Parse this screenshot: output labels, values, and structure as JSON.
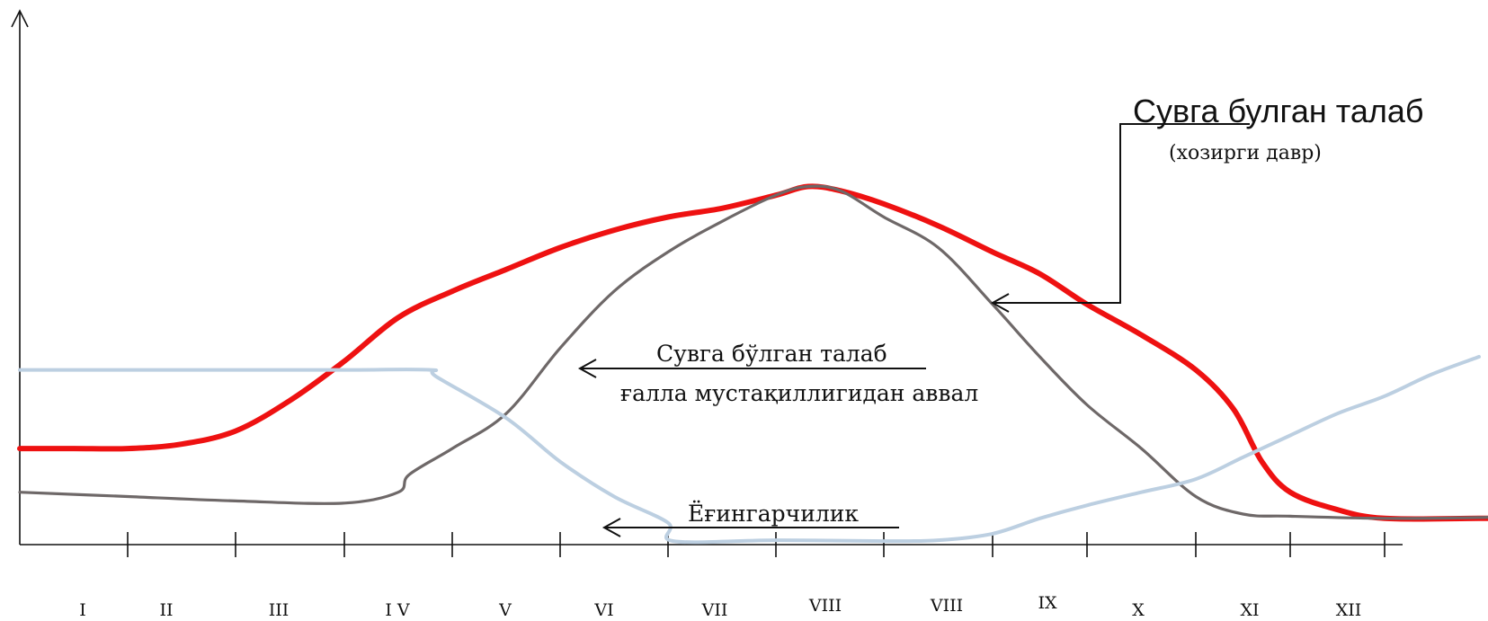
{
  "chart_data": {
    "type": "line",
    "title": "",
    "xlabel": "",
    "ylabel": "",
    "categories": [
      "I",
      "II",
      "III",
      "I V",
      "V",
      "VI",
      "VII",
      "VIII",
      "VIII",
      "IX",
      "X",
      "XI",
      "XII"
    ],
    "grid": false,
    "legend": "none",
    "series": [
      {
        "color": "#ee1111",
        "points": [
          [
            0,
            0.22
          ],
          [
            0.5,
            0.22
          ],
          [
            1,
            0.22
          ],
          [
            1.5,
            0.23
          ],
          [
            2,
            0.26
          ],
          [
            2.5,
            0.33
          ],
          [
            3,
            0.42
          ],
          [
            3.5,
            0.52
          ],
          [
            4,
            0.58
          ],
          [
            4.5,
            0.63
          ],
          [
            5,
            0.68
          ],
          [
            5.5,
            0.72
          ],
          [
            6,
            0.75
          ],
          [
            6.5,
            0.77
          ],
          [
            7,
            0.8
          ],
          [
            7.3,
            0.82
          ],
          [
            7.6,
            0.81
          ],
          [
            8,
            0.78
          ],
          [
            8.5,
            0.73
          ],
          [
            9,
            0.67
          ],
          [
            9.5,
            0.62
          ],
          [
            10,
            0.55
          ],
          [
            10.5,
            0.48
          ],
          [
            11,
            0.4
          ],
          [
            11.4,
            0.31
          ],
          [
            11.7,
            0.19
          ],
          [
            12,
            0.12
          ],
          [
            12.5,
            0.08
          ],
          [
            13,
            0.06
          ],
          [
            14,
            0.06
          ],
          [
            14.6,
            0.06
          ]
        ]
      },
      {
        "color": "#6e6868",
        "points": [
          [
            0,
            0.12
          ],
          [
            1,
            0.11
          ],
          [
            2,
            0.1
          ],
          [
            3,
            0.095
          ],
          [
            3.5,
            0.12
          ],
          [
            3.6,
            0.16
          ],
          [
            4,
            0.22
          ],
          [
            4.5,
            0.3
          ],
          [
            5,
            0.45
          ],
          [
            5.5,
            0.58
          ],
          [
            6,
            0.67
          ],
          [
            6.5,
            0.74
          ],
          [
            7,
            0.8
          ],
          [
            7.3,
            0.82
          ],
          [
            7.6,
            0.81
          ],
          [
            8,
            0.75
          ],
          [
            8.5,
            0.68
          ],
          [
            9,
            0.55
          ],
          [
            9.5,
            0.43
          ],
          [
            10,
            0.32
          ],
          [
            10.5,
            0.22
          ],
          [
            11,
            0.11
          ],
          [
            11.5,
            0.07
          ],
          [
            12,
            0.065
          ],
          [
            13,
            0.06
          ],
          [
            14,
            0.062
          ],
          [
            14.6,
            0.067
          ]
        ]
      },
      {
        "color": "#bccfe1",
        "points": [
          [
            0,
            0.4
          ],
          [
            1,
            0.4
          ],
          [
            2,
            0.4
          ],
          [
            3,
            0.4
          ],
          [
            3.8,
            0.4
          ],
          [
            3.85,
            0.385
          ],
          [
            4.5,
            0.29
          ],
          [
            5,
            0.19
          ],
          [
            5.5,
            0.11
          ],
          [
            6,
            0.05
          ],
          [
            6.05,
            0.008
          ],
          [
            7,
            0.01
          ],
          [
            8,
            0.008
          ],
          [
            8.5,
            0.01
          ],
          [
            9,
            0.025
          ],
          [
            9.5,
            0.06
          ],
          [
            10,
            0.09
          ],
          [
            10.5,
            0.12
          ],
          [
            11,
            0.15
          ],
          [
            11.5,
            0.2
          ],
          [
            12,
            0.25
          ],
          [
            12.5,
            0.3
          ],
          [
            13,
            0.34
          ],
          [
            13.5,
            0.39
          ],
          [
            14,
            0.43
          ]
        ]
      }
    ],
    "annotations": [
      {
        "text": "Сувга булган талаб",
        "note": "(хозирги давр)"
      },
      {
        "text": "Сувга бўлган талаб",
        "note": "ғалла мустақиллигидан аввал"
      },
      {
        "text": "Ёғингарчилик"
      }
    ]
  }
}
